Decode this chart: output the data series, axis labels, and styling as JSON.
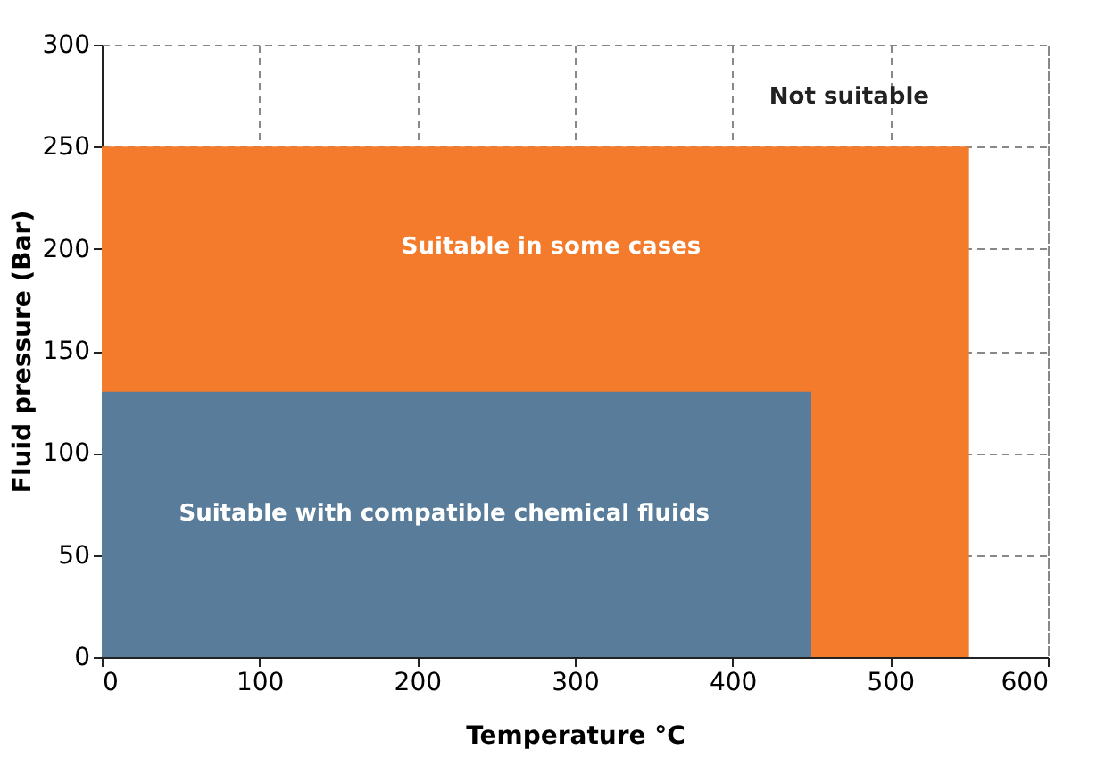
{
  "chart_data": {
    "type": "area",
    "xlabel": "Temperature °C",
    "ylabel": "Fluid pressure (Bar)",
    "series": [
      {
        "color": "#f47b2c",
        "x": [
          0,
          550
        ],
        "values": [
          250,
          250
        ]
      },
      {
        "color": "#587c99",
        "x": [
          0,
          450
        ],
        "values": [
          130,
          130
        ]
      }
    ],
    "xlim": [
      0,
      600
    ],
    "xticks": [
      0,
      100,
      200,
      300,
      400,
      500,
      600
    ],
    "ylim": [
      0,
      300
    ],
    "yticks": [
      0,
      50,
      100,
      150,
      200,
      250,
      300
    ],
    "grid": true,
    "line_style": "dashed",
    "annotations": [
      "Not suitable",
      "Suitable in some cases",
      "Suitable with compatible chemical fluids"
    ]
  }
}
